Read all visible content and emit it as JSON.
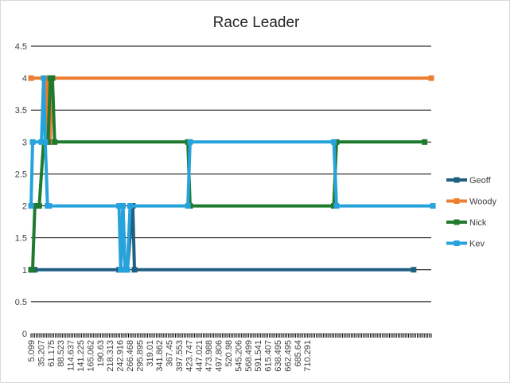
{
  "chart_data": {
    "type": "line",
    "title": "Race Leader",
    "xlabel": "",
    "ylabel": "",
    "ylim": [
      0,
      4.5
    ],
    "yticks": [
      "0",
      "0.5",
      "1",
      "1.5",
      "2",
      "2.5",
      "3",
      "3.5",
      "4",
      "4.5"
    ],
    "xlim": [
      5.099,
      732
    ],
    "xticks": [
      "5.099",
      "35.207",
      "61.175",
      "88.523",
      "114.637",
      "141.225",
      "165.062",
      "190.63",
      "218.313",
      "242.916",
      "266.468",
      "295.895",
      "319.01",
      "341.862",
      "367.45",
      "397.553",
      "423.747",
      "447.021",
      "473.988",
      "497.806",
      "520.98",
      "545.206",
      "568.499",
      "591.541",
      "615.407",
      "638.495",
      "662.495",
      "685.64",
      "710.291"
    ],
    "grid": true,
    "legend_position": "right",
    "series": [
      {
        "name": "Geoff",
        "color": "#1f5f82",
        "x": [
          5.099,
          10,
          12,
          165,
          168,
          172,
          176,
          180,
          190,
          193,
          700
        ],
        "values": [
          1,
          1,
          1,
          1,
          1,
          2,
          1,
          1,
          2,
          1,
          1
        ]
      },
      {
        "name": "Woody",
        "color": "#ed7d31",
        "x": [
          5.099,
          30,
          33,
          36,
          40,
          43,
          732
        ],
        "values": [
          4,
          4,
          3,
          4,
          3,
          4,
          4
        ]
      },
      {
        "name": "Nick",
        "color": "#1e7a2e",
        "x": [
          5.099,
          8,
          12,
          20,
          28,
          36,
          40,
          44,
          48,
          290,
          294,
          555,
          560,
          720
        ],
        "values": [
          1,
          1,
          2,
          2,
          3,
          3,
          4,
          4,
          3,
          3,
          2,
          2,
          3,
          3
        ]
      },
      {
        "name": "Kev",
        "color": "#27a3dc",
        "x": [
          5.099,
          8,
          24,
          28,
          31,
          35,
          38,
          165,
          168,
          172,
          176,
          180,
          185,
          290,
          294,
          555,
          560,
          735
        ],
        "values": [
          2,
          3,
          3,
          4,
          3,
          2,
          2,
          2,
          1,
          2,
          1,
          1,
          2,
          2,
          3,
          3,
          2,
          2
        ]
      }
    ]
  }
}
